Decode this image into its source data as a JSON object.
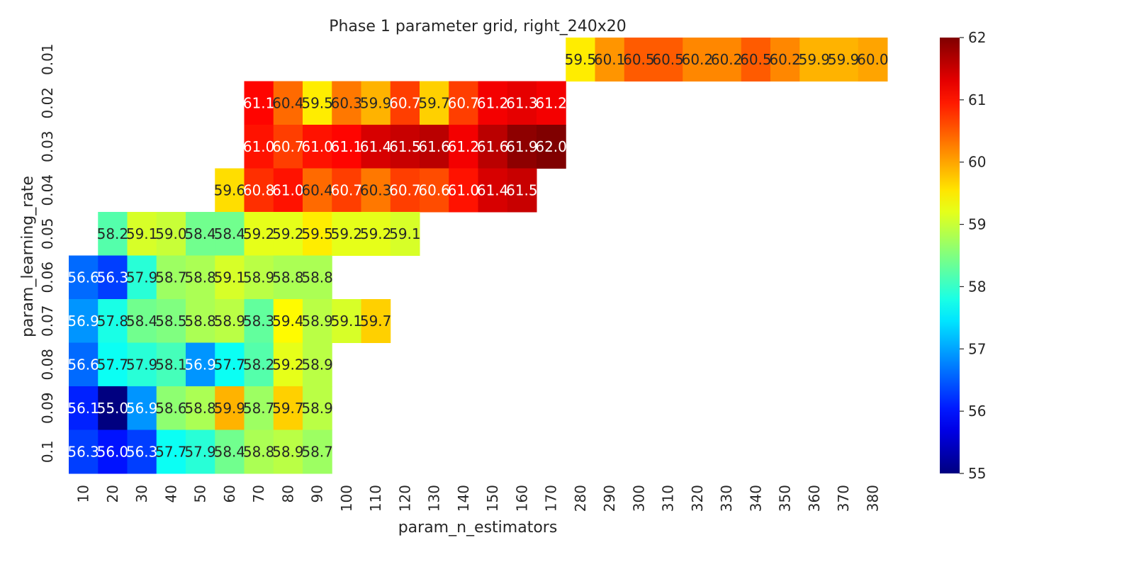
{
  "chart_data": {
    "type": "heatmap",
    "title": "Phase 1 parameter grid, right_240x20",
    "xlabel": "param_n_estimators",
    "ylabel": "param_learning_rate",
    "x_categories": [
      "10",
      "20",
      "30",
      "40",
      "50",
      "60",
      "70",
      "80",
      "90",
      "100",
      "110",
      "120",
      "130",
      "140",
      "150",
      "160",
      "170",
      "280",
      "290",
      "300",
      "310",
      "320",
      "330",
      "340",
      "350",
      "360",
      "370",
      "380"
    ],
    "y_categories": [
      "0.01",
      "0.02",
      "0.03",
      "0.04",
      "0.05",
      "0.06",
      "0.07",
      "0.08",
      "0.09",
      "0.1"
    ],
    "colormap": "jet",
    "colorbar": {
      "min": 55,
      "max": 62,
      "ticks": [
        "55",
        "56",
        "57",
        "58",
        "59",
        "60",
        "61",
        "62"
      ]
    },
    "values": [
      [
        null,
        null,
        null,
        null,
        null,
        null,
        null,
        null,
        null,
        null,
        null,
        null,
        null,
        null,
        null,
        null,
        null,
        59.5,
        60.1,
        60.5,
        60.5,
        60.2,
        60.2,
        60.5,
        60.2,
        59.9,
        59.9,
        60.0
      ],
      [
        null,
        null,
        null,
        null,
        null,
        null,
        61.1,
        60.4,
        59.5,
        60.3,
        59.9,
        60.7,
        59.7,
        60.7,
        61.2,
        61.3,
        61.2,
        null,
        null,
        null,
        null,
        null,
        null,
        null,
        null,
        null,
        null,
        null
      ],
      [
        null,
        null,
        null,
        null,
        null,
        null,
        61.0,
        60.7,
        61.0,
        61.1,
        61.4,
        61.5,
        61.6,
        61.2,
        61.6,
        61.9,
        62.0,
        null,
        null,
        null,
        null,
        null,
        null,
        null,
        null,
        null,
        null,
        null
      ],
      [
        null,
        null,
        null,
        null,
        null,
        59.6,
        60.8,
        61.0,
        60.4,
        60.7,
        60.3,
        60.7,
        60.6,
        61.0,
        61.4,
        61.5,
        null,
        null,
        null,
        null,
        null,
        null,
        null,
        null,
        null,
        null,
        null,
        null
      ],
      [
        null,
        58.2,
        59.1,
        59.0,
        58.4,
        58.4,
        59.2,
        59.2,
        59.5,
        59.2,
        59.2,
        59.1,
        null,
        null,
        null,
        null,
        null,
        null,
        null,
        null,
        null,
        null,
        null,
        null,
        null,
        null,
        null,
        null
      ],
      [
        56.6,
        56.3,
        57.9,
        58.7,
        58.8,
        59.1,
        58.9,
        58.8,
        58.8,
        null,
        null,
        null,
        null,
        null,
        null,
        null,
        null,
        null,
        null,
        null,
        null,
        null,
        null,
        null,
        null,
        null,
        null,
        null
      ],
      [
        56.9,
        57.8,
        58.4,
        58.5,
        58.8,
        58.9,
        58.3,
        59.4,
        58.9,
        59.1,
        59.7,
        null,
        null,
        null,
        null,
        null,
        null,
        null,
        null,
        null,
        null,
        null,
        null,
        null,
        null,
        null,
        null,
        null
      ],
      [
        56.6,
        57.7,
        57.9,
        58.1,
        56.9,
        57.7,
        58.2,
        59.2,
        58.9,
        null,
        null,
        null,
        null,
        null,
        null,
        null,
        null,
        null,
        null,
        null,
        null,
        null,
        null,
        null,
        null,
        null,
        null,
        null
      ],
      [
        56.1,
        55.0,
        56.9,
        58.6,
        58.8,
        59.9,
        58.7,
        59.7,
        58.9,
        null,
        null,
        null,
        null,
        null,
        null,
        null,
        null,
        null,
        null,
        null,
        null,
        null,
        null,
        null,
        null,
        null,
        null,
        null
      ],
      [
        56.3,
        56.0,
        56.3,
        57.7,
        57.9,
        58.4,
        58.8,
        58.9,
        58.7,
        null,
        null,
        null,
        null,
        null,
        null,
        null,
        null,
        null,
        null,
        null,
        null,
        null,
        null,
        null,
        null,
        null,
        null,
        null
      ]
    ]
  }
}
